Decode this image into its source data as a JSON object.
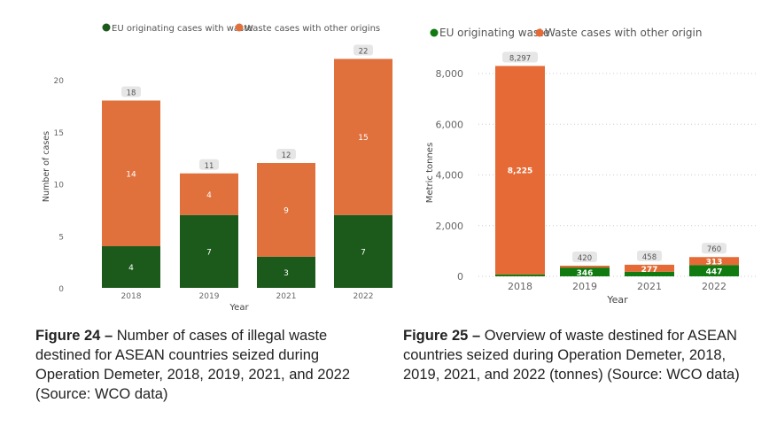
{
  "chart_data": [
    {
      "type": "bar",
      "stacked": true,
      "xlabel": "Year",
      "ylabel": "Number of cases",
      "ylim": [
        0,
        20
      ],
      "yticks": [
        0,
        5,
        10,
        15,
        20
      ],
      "categories": [
        "2018",
        "2019",
        "2021",
        "2022"
      ],
      "legend": [
        "EU originating cases with waste",
        "Waste cases with other origins"
      ],
      "series": [
        {
          "name": "EU originating cases with waste",
          "color": "#1c5a1c",
          "values": [
            4,
            7,
            3,
            7
          ]
        },
        {
          "name": "Waste cases with other origins",
          "color": "#e0703c",
          "values": [
            14,
            4,
            9,
            15
          ]
        }
      ],
      "totals": [
        18,
        11,
        12,
        22
      ]
    },
    {
      "type": "bar",
      "stacked": true,
      "xlabel": "Year",
      "ylabel": "Metric tonnes",
      "ylim": [
        0,
        8000
      ],
      "yticks": [
        "0",
        "2,000",
        "4,000",
        "6,000",
        "8,000"
      ],
      "categories": [
        "2018",
        "2019",
        "2021",
        "2022"
      ],
      "legend": [
        "EU originating waste",
        "Waste cases with other origin"
      ],
      "series": [
        {
          "name": "EU originating waste",
          "color": "#117a11",
          "values": [
            72,
            346,
            181,
            447
          ],
          "labels": [
            "",
            "346",
            "",
            "447"
          ]
        },
        {
          "name": "Waste cases with other origin",
          "color": "#e56a35",
          "values": [
            8225,
            74,
            277,
            313
          ],
          "labels": [
            "8,225",
            "",
            "277",
            "313"
          ]
        }
      ],
      "totals": [
        "8,297",
        "420",
        "458",
        "760"
      ]
    }
  ],
  "captions": [
    {
      "label": "Figure 24 –",
      "text": " Number of cases of illegal waste destined for ASEAN countries seized during Operation Demeter, 2018, 2019, 2021, and 2022 (Source: WCO data)"
    },
    {
      "label": "Figure 25 –",
      "text": " Overview of waste destined for ASEAN countries seized during Operation Demeter, 2018, 2019, 2021, and 2022 (tonnes) (Source: WCO data)"
    }
  ]
}
